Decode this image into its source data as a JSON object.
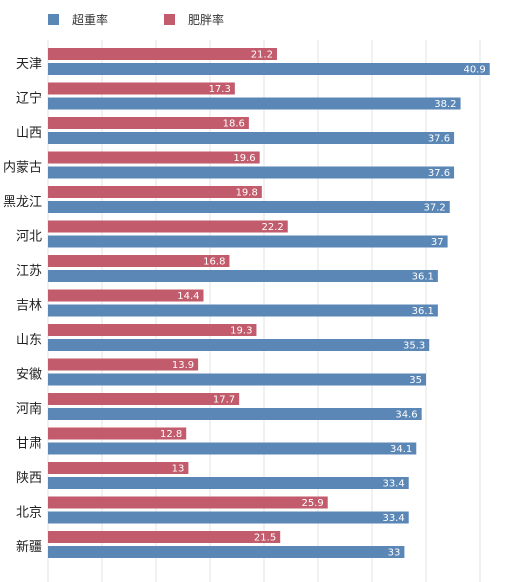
{
  "chart_data": {
    "type": "bar",
    "orientation": "horizontal",
    "categories": [
      "天津",
      "辽宁",
      "山西",
      "内蒙古",
      "黑龙江",
      "河北",
      "江苏",
      "吉林",
      "山东",
      "安徽",
      "河南",
      "甘肃",
      "陕西",
      "北京",
      "新疆"
    ],
    "series": [
      {
        "name": "肥胖率",
        "color": "#c25b6b",
        "values": [
          21.2,
          17.3,
          18.6,
          19.6,
          19.8,
          22.2,
          16.8,
          14.4,
          19.3,
          13.9,
          17.7,
          12.8,
          13,
          25.9,
          21.5
        ]
      },
      {
        "name": "超重率",
        "color": "#5b87b7",
        "values": [
          40.9,
          38.2,
          37.6,
          37.6,
          37.2,
          37,
          36.1,
          36.1,
          35.3,
          35,
          34.6,
          34.1,
          33.4,
          33.4,
          33
        ]
      }
    ],
    "legend": [
      "超重率",
      "肥胖率"
    ],
    "legend_position": "top-left",
    "xlim": [
      0,
      45
    ],
    "grid": true
  }
}
